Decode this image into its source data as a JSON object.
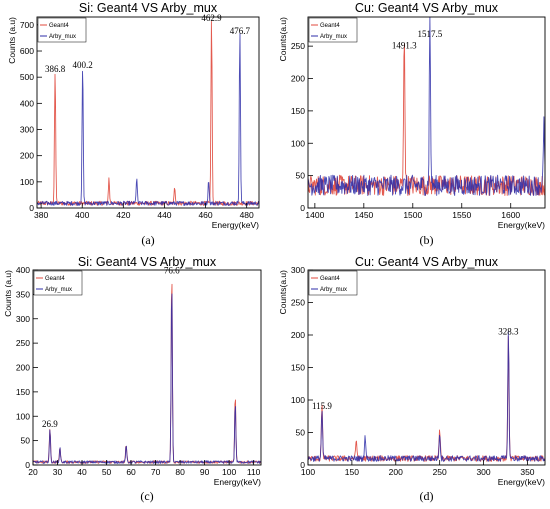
{
  "chart_data": [
    {
      "id": "a",
      "type": "line",
      "title": "Si: Geant4 VS Arby_mux",
      "xlabel": "Energy(keV)",
      "ylabel": "Counts (a.u)",
      "caption": "(a)",
      "xlim": [
        378,
        486
      ],
      "ylim": [
        0,
        730
      ],
      "xticks": [
        380,
        400,
        420,
        440,
        460,
        480
      ],
      "yticks": [
        0,
        100,
        200,
        300,
        400,
        500,
        600,
        700
      ],
      "legend": "top-left",
      "baseline": 18,
      "series": [
        {
          "name": "Geant4",
          "color": "#e0483c",
          "peaks": [
            [
              386.8,
              505
            ],
            [
              413,
              95
            ],
            [
              445,
              60
            ],
            [
              462.9,
              700
            ]
          ]
        },
        {
          "name": "Arby_mux",
          "color": "#2c2ca8",
          "peaks": [
            [
              400.2,
              520
            ],
            [
              426.5,
              95
            ],
            [
              461.5,
              90
            ],
            [
              476.7,
              650
            ]
          ]
        }
      ],
      "annotations": [
        {
          "text": "386.8",
          "x": 386.8,
          "y": 505
        },
        {
          "text": "400.2",
          "x": 400.2,
          "y": 520
        },
        {
          "text": "462.9",
          "x": 462.9,
          "y": 700
        },
        {
          "text": "476.7",
          "x": 476.7,
          "y": 650
        }
      ]
    },
    {
      "id": "b",
      "type": "line",
      "title": "Cu: Geant4 VS Arby_mux",
      "xlabel": "Energy(keV)",
      "ylabel": "Counts(a.u)",
      "caption": "(b)",
      "xlim": [
        1393,
        1635
      ],
      "ylim": [
        0,
        295
      ],
      "xticks": [
        1400,
        1450,
        1500,
        1550,
        1600
      ],
      "yticks": [
        0,
        50,
        100,
        150,
        200,
        250
      ],
      "legend": "top-left",
      "baseline": 35,
      "series": [
        {
          "name": "Geant4",
          "color": "#e0483c",
          "peaks": [
            [
              1491.3,
              240
            ]
          ]
        },
        {
          "name": "Arby_mux",
          "color": "#2c2ca8",
          "peaks": [
            [
              1517.5,
              258
            ],
            [
              1634,
              95
            ]
          ]
        }
      ],
      "annotations": [
        {
          "text": "1491.3",
          "x": 1491.3,
          "y": 240
        },
        {
          "text": "1517.5",
          "x": 1517.5,
          "y": 258
        }
      ]
    },
    {
      "id": "c",
      "type": "line",
      "title": "Si: Geant4 VS Arby_mux",
      "xlabel": "Energy(keV)",
      "ylabel": "Counts (a.u)",
      "caption": "(c)",
      "xlim": [
        20,
        113
      ],
      "ylim": [
        0,
        400
      ],
      "xticks": [
        20,
        30,
        40,
        50,
        60,
        70,
        80,
        90,
        100,
        110
      ],
      "yticks": [
        0,
        50,
        100,
        150,
        200,
        250,
        300,
        350,
        400
      ],
      "legend": "top-left",
      "baseline": 6,
      "series": [
        {
          "name": "Geant4",
          "color": "#e0483c",
          "peaks": [
            [
              26.9,
              70
            ],
            [
              31,
              30
            ],
            [
              58,
              35
            ],
            [
              76.6,
              385
            ],
            [
              102.5,
              135
            ]
          ]
        },
        {
          "name": "Arby_mux",
          "color": "#2c2ca8",
          "peaks": [
            [
              26.9,
              65
            ],
            [
              31,
              28
            ],
            [
              58,
              32
            ],
            [
              76.6,
              365
            ],
            [
              102.5,
              120
            ]
          ]
        }
      ],
      "annotations": [
        {
          "text": "26.9",
          "x": 26.9,
          "y": 70
        },
        {
          "text": "76.6",
          "x": 76.6,
          "y": 385
        }
      ]
    },
    {
      "id": "d",
      "type": "line",
      "title": "Cu: Geant4 VS Arby_mux",
      "xlabel": "Energy(keV)",
      "ylabel": "Counts(a.u)",
      "caption": "(d)",
      "xlim": [
        100,
        370
      ],
      "ylim": [
        0,
        300
      ],
      "xticks": [
        100,
        150,
        200,
        250,
        300,
        350
      ],
      "yticks": [
        0,
        50,
        100,
        150,
        200,
        250,
        300
      ],
      "legend": "top-left",
      "baseline": 10,
      "series": [
        {
          "name": "Geant4",
          "color": "#e0483c",
          "peaks": [
            [
              115.9,
              80
            ],
            [
              155,
              30
            ],
            [
              250,
              45
            ],
            [
              328.3,
              190
            ]
          ]
        },
        {
          "name": "Arby_mux",
          "color": "#2c2ca8",
          "peaks": [
            [
              115.9,
              75
            ],
            [
              165,
              35
            ],
            [
              250,
              40
            ],
            [
              328.3,
              195
            ]
          ]
        }
      ],
      "annotations": [
        {
          "text": "115.9",
          "x": 115.9,
          "y": 80
        },
        {
          "text": "328.3",
          "x": 328.3,
          "y": 195
        }
      ]
    }
  ]
}
